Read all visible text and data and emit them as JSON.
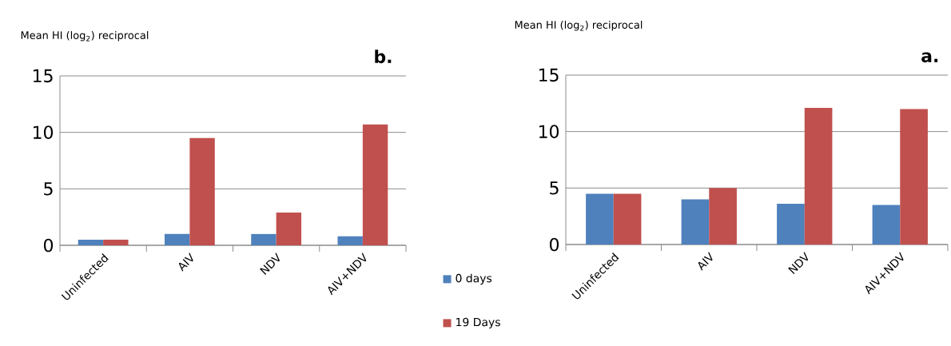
{
  "chart_data": [
    {
      "type": "bar",
      "title": "b.",
      "ylabel": "Mean HI (log$_{2}$) reciprocal",
      "categories": [
        "Uninfected",
        "AIV",
        "NDV",
        "AIV+NDV"
      ],
      "series": [
        {
          "name": "0 days",
          "color": "#4f81bd",
          "values": [
            0.5,
            1.0,
            1.0,
            0.8
          ]
        },
        {
          "name": "19 Days",
          "color": "#c0504d",
          "values": [
            0.5,
            9.5,
            2.9,
            10.7
          ]
        }
      ],
      "ylim": [
        0,
        15
      ],
      "yticks": [
        0,
        5,
        10,
        15
      ],
      "grid": "y",
      "legend": "bottom right"
    },
    {
      "type": "bar",
      "title": "a.",
      "ylabel": "Mean HI (log$_{2}$) reciprocal",
      "categories": [
        "Uninfected",
        "AIV",
        "NDV",
        "AIV+NDV"
      ],
      "series": [
        {
          "color": "#4f81bd",
          "values": [
            4.5,
            4.0,
            3.6,
            3.5
          ]
        },
        {
          "color": "#c0504d",
          "values": [
            4.5,
            5.0,
            12.1,
            12.0
          ]
        }
      ],
      "ylim": [
        0,
        15
      ],
      "yticks": [
        0,
        5,
        10,
        15
      ],
      "grid": "y"
    }
  ]
}
